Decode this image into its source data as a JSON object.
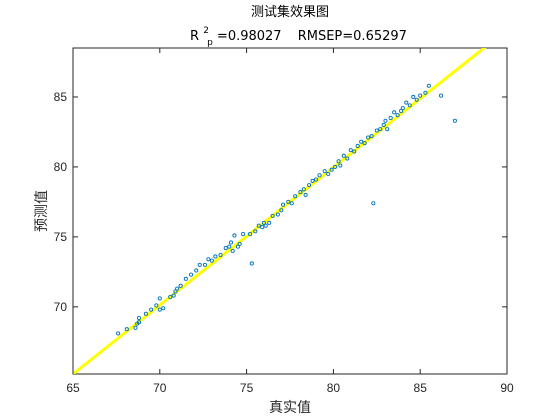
{
  "chart_data": {
    "type": "scatter",
    "title": "测试集效果图",
    "subtitle": {
      "r_symbol": "R",
      "r_sup": "2",
      "r_sub": "p",
      "r_value": "=0.98027",
      "rmsep_text": "RMSEP=0.65297"
    },
    "xlabel": "真实值",
    "ylabel": "预测值",
    "xlim": [
      65,
      90
    ],
    "ylim": [
      65.2,
      88.5
    ],
    "xticks": [
      "65",
      "70",
      "75",
      "80",
      "85",
      "90"
    ],
    "yticks": [
      "70",
      "75",
      "80",
      "85"
    ],
    "grid": false,
    "colors": {
      "points": "#0072BD",
      "fit_line": "#FFFF00",
      "axes": "#262626"
    },
    "fit_line": {
      "from": [
        65,
        65.2
      ],
      "to": [
        90,
        89.8
      ]
    },
    "points": [
      [
        67.6,
        68.1
      ],
      [
        68.1,
        68.4
      ],
      [
        68.6,
        68.5
      ],
      [
        68.7,
        68.8
      ],
      [
        68.8,
        68.9
      ],
      [
        68.8,
        69.2
      ],
      [
        69.2,
        69.5
      ],
      [
        69.5,
        69.8
      ],
      [
        69.8,
        70.1
      ],
      [
        70.0,
        70.6
      ],
      [
        70.0,
        69.8
      ],
      [
        70.2,
        69.9
      ],
      [
        70.6,
        70.7
      ],
      [
        70.8,
        70.8
      ],
      [
        70.9,
        71.1
      ],
      [
        71.0,
        71.3
      ],
      [
        71.2,
        71.5
      ],
      [
        71.5,
        72.0
      ],
      [
        71.8,
        72.3
      ],
      [
        72.1,
        72.6
      ],
      [
        72.3,
        73.0
      ],
      [
        72.6,
        73.0
      ],
      [
        72.8,
        73.4
      ],
      [
        73.0,
        73.3
      ],
      [
        73.2,
        73.6
      ],
      [
        73.5,
        73.7
      ],
      [
        73.8,
        74.2
      ],
      [
        74.0,
        74.3
      ],
      [
        74.1,
        74.6
      ],
      [
        74.2,
        74.0
      ],
      [
        74.3,
        75.1
      ],
      [
        74.5,
        74.3
      ],
      [
        74.6,
        74.5
      ],
      [
        74.8,
        75.2
      ],
      [
        75.2,
        75.2
      ],
      [
        75.3,
        73.1
      ],
      [
        75.5,
        75.4
      ],
      [
        75.7,
        75.8
      ],
      [
        75.9,
        75.7
      ],
      [
        76.0,
        76.0
      ],
      [
        76.1,
        75.8
      ],
      [
        76.3,
        76.0
      ],
      [
        76.5,
        76.5
      ],
      [
        76.8,
        76.6
      ],
      [
        77.0,
        76.9
      ],
      [
        77.1,
        77.3
      ],
      [
        77.4,
        77.5
      ],
      [
        77.6,
        77.4
      ],
      [
        77.8,
        77.9
      ],
      [
        78.1,
        78.2
      ],
      [
        78.3,
        78.4
      ],
      [
        78.4,
        78.0
      ],
      [
        78.6,
        78.7
      ],
      [
        78.8,
        79.0
      ],
      [
        79.0,
        79.1
      ],
      [
        79.2,
        79.4
      ],
      [
        79.5,
        79.7
      ],
      [
        79.7,
        79.5
      ],
      [
        79.9,
        79.8
      ],
      [
        80.1,
        80.0
      ],
      [
        80.3,
        80.4
      ],
      [
        80.4,
        80.1
      ],
      [
        80.6,
        80.8
      ],
      [
        80.8,
        80.6
      ],
      [
        81.0,
        81.2
      ],
      [
        81.2,
        81.1
      ],
      [
        81.4,
        81.5
      ],
      [
        81.6,
        81.8
      ],
      [
        81.8,
        81.7
      ],
      [
        82.0,
        82.1
      ],
      [
        82.2,
        82.2
      ],
      [
        82.3,
        77.4
      ],
      [
        82.5,
        82.6
      ],
      [
        82.7,
        82.7
      ],
      [
        82.9,
        83.0
      ],
      [
        83.0,
        83.3
      ],
      [
        83.1,
        82.7
      ],
      [
        83.3,
        83.5
      ],
      [
        83.5,
        83.9
      ],
      [
        83.7,
        83.7
      ],
      [
        83.9,
        84.0
      ],
      [
        84.0,
        84.2
      ],
      [
        84.2,
        84.6
      ],
      [
        84.4,
        84.4
      ],
      [
        84.6,
        85.0
      ],
      [
        84.8,
        84.8
      ],
      [
        85.0,
        85.1
      ],
      [
        85.3,
        85.3
      ],
      [
        85.5,
        85.8
      ],
      [
        86.2,
        85.1
      ],
      [
        87.0,
        83.3
      ]
    ]
  }
}
